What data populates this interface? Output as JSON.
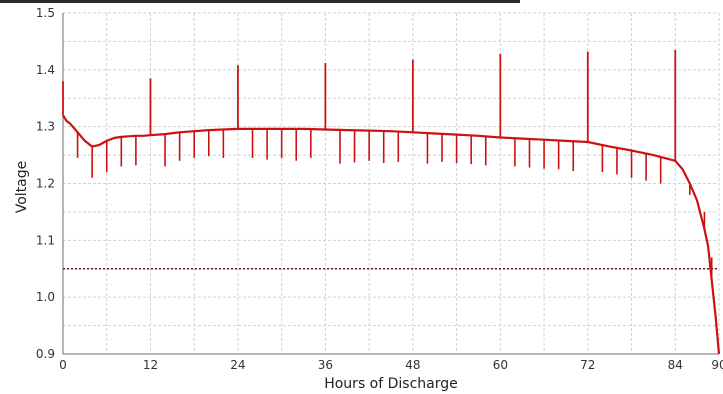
{
  "chart_data": {
    "type": "line",
    "xlabel": "Hours of Discharge",
    "ylabel": "Voltage",
    "xlim": [
      0,
      90
    ],
    "ylim": [
      0.9,
      1.5
    ],
    "x_ticks": [
      0,
      12,
      24,
      36,
      48,
      60,
      72,
      84,
      90
    ],
    "x_tick_labels": [
      "0",
      "12",
      "24",
      "36",
      "48",
      "60",
      "72",
      "84",
      "90"
    ],
    "y_ticks": [
      0.9,
      1.0,
      1.1,
      1.2,
      1.3,
      1.4,
      1.5
    ],
    "y_tick_labels": [
      "0.9",
      "1.0",
      "1.1",
      "1.2",
      "1.3",
      "1.4",
      "1.5"
    ],
    "grid": true,
    "colors": {
      "series": "#cc1111",
      "cutoff": "#7a1030",
      "grid": "#d2d2d2"
    },
    "series": [
      {
        "x": [
          0,
          0.5,
          1,
          2,
          3,
          4,
          5,
          6,
          7,
          8,
          9,
          10,
          11,
          12,
          14,
          16,
          18,
          20,
          22,
          24,
          27,
          30,
          33,
          36,
          39,
          42,
          45,
          48,
          51,
          54,
          57,
          60,
          63,
          66,
          69,
          72,
          75,
          78,
          81,
          84,
          85,
          86,
          87,
          88,
          88.5,
          89,
          89.5,
          90
        ],
        "y": [
          1.32,
          1.31,
          1.305,
          1.29,
          1.275,
          1.265,
          1.268,
          1.275,
          1.28,
          1.282,
          1.283,
          1.284,
          1.284,
          1.285,
          1.287,
          1.29,
          1.292,
          1.294,
          1.295,
          1.296,
          1.296,
          1.296,
          1.296,
          1.295,
          1.294,
          1.293,
          1.292,
          1.29,
          1.288,
          1.286,
          1.284,
          1.281,
          1.279,
          1.277,
          1.275,
          1.273,
          1.265,
          1.258,
          1.25,
          1.24,
          1.225,
          1.2,
          1.17,
          1.12,
          1.09,
          1.03,
          0.97,
          0.9
        ]
      }
    ],
    "spikes": [
      {
        "x": 0,
        "y": 1.38
      },
      {
        "x": 12,
        "y": 1.385
      },
      {
        "x": 24,
        "y": 1.408
      },
      {
        "x": 36,
        "y": 1.412
      },
      {
        "x": 48,
        "y": 1.418
      },
      {
        "x": 60,
        "y": 1.428
      },
      {
        "x": 72,
        "y": 1.432
      },
      {
        "x": 84,
        "y": 1.435
      }
    ],
    "dips": [
      {
        "x": 2,
        "y": 1.245
      },
      {
        "x": 4,
        "y": 1.21
      },
      {
        "x": 6,
        "y": 1.22
      },
      {
        "x": 8,
        "y": 1.23
      },
      {
        "x": 10,
        "y": 1.232
      },
      {
        "x": 14,
        "y": 1.23
      },
      {
        "x": 16,
        "y": 1.24
      },
      {
        "x": 18,
        "y": 1.245
      },
      {
        "x": 20,
        "y": 1.248
      },
      {
        "x": 22,
        "y": 1.245
      },
      {
        "x": 26,
        "y": 1.245
      },
      {
        "x": 28,
        "y": 1.242
      },
      {
        "x": 30,
        "y": 1.245
      },
      {
        "x": 32,
        "y": 1.24
      },
      {
        "x": 34,
        "y": 1.245
      },
      {
        "x": 38,
        "y": 1.235
      },
      {
        "x": 40,
        "y": 1.237
      },
      {
        "x": 42,
        "y": 1.24
      },
      {
        "x": 44,
        "y": 1.236
      },
      {
        "x": 46,
        "y": 1.238
      },
      {
        "x": 50,
        "y": 1.235
      },
      {
        "x": 52,
        "y": 1.238
      },
      {
        "x": 54,
        "y": 1.236
      },
      {
        "x": 56,
        "y": 1.234
      },
      {
        "x": 58,
        "y": 1.232
      },
      {
        "x": 62,
        "y": 1.23
      },
      {
        "x": 64,
        "y": 1.228
      },
      {
        "x": 66,
        "y": 1.226
      },
      {
        "x": 68,
        "y": 1.225
      },
      {
        "x": 70,
        "y": 1.222
      },
      {
        "x": 74,
        "y": 1.22
      },
      {
        "x": 76,
        "y": 1.216
      },
      {
        "x": 78,
        "y": 1.21
      },
      {
        "x": 80,
        "y": 1.205
      },
      {
        "x": 82,
        "y": 1.2
      },
      {
        "x": 86,
        "y": 1.18
      },
      {
        "x": 88,
        "y": 1.15
      },
      {
        "x": 89,
        "y": 1.07
      }
    ],
    "cutoff_line": {
      "y": 1.05,
      "style": "dotted"
    }
  }
}
